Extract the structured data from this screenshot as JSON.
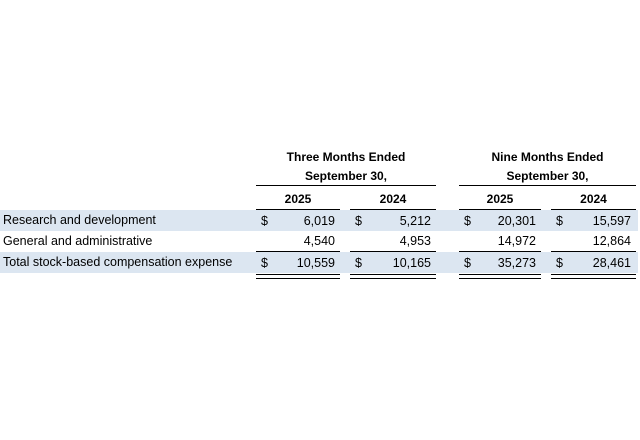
{
  "table": {
    "currency_symbol": "$",
    "groups": [
      {
        "title": "Three Months Ended",
        "subtitle": "September 30,",
        "years": [
          "2025",
          "2024"
        ]
      },
      {
        "title": "Nine Months Ended",
        "subtitle": "September 30,",
        "years": [
          "2025",
          "2024"
        ]
      }
    ],
    "rows": [
      {
        "label": "Research and development",
        "values": [
          "6,019",
          "5,212",
          "20,301",
          "15,597"
        ],
        "has_dollar": true,
        "shaded": true
      },
      {
        "label": "General and administrative",
        "values": [
          "4,540",
          "4,953",
          "14,972",
          "12,864"
        ],
        "has_dollar": false,
        "shaded": false
      },
      {
        "label": "Total stock-based compensation expense",
        "values": [
          "10,559",
          "10,165",
          "35,273",
          "28,461"
        ],
        "has_dollar": true,
        "shaded": true
      }
    ],
    "colors": {
      "row_shading": "#dce6f1",
      "text": "#000000",
      "border": "#000000",
      "background": "#ffffff"
    }
  }
}
